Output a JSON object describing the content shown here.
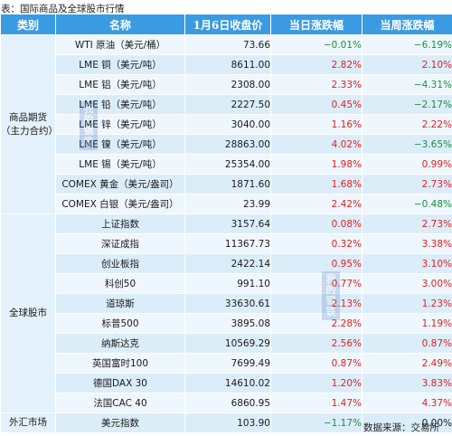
{
  "caption": "表：国际商品及全球股市行情",
  "headers": [
    "类别",
    "名称",
    "1月6日收盘价",
    "当日涨跌幅",
    "当周涨跌幅"
  ],
  "groups": [
    {
      "category": "商品期货（主力合约）",
      "rows": [
        {
          "name": "WTI 原油（美元/桶）",
          "close": "73.66",
          "day": "−0.01%",
          "week": "−6.19%"
        },
        {
          "name": "LME 铜（美元/吨）",
          "close": "8611.00",
          "day": "2.82%",
          "week": "2.10%"
        },
        {
          "name": "LME 铝（美元/吨）",
          "close": "2308.00",
          "day": "2.33%",
          "week": "−4.31%"
        },
        {
          "name": "LME 铅（美元/吨）",
          "close": "2227.50",
          "day": "0.45%",
          "week": "−2.17%"
        },
        {
          "name": "LME 锌（美元/吨）",
          "close": "3040.00",
          "day": "1.16%",
          "week": "2.22%"
        },
        {
          "name": "LME 镍（美元/吨）",
          "close": "28863.00",
          "day": "4.02%",
          "week": "−3.65%"
        },
        {
          "name": "LME 锡（美元/吨）",
          "close": "25354.00",
          "day": "1.98%",
          "week": "0.99%"
        },
        {
          "name": "COMEX 黄金（美元/盎司）",
          "close": "1871.60",
          "day": "1.68%",
          "week": "2.73%"
        },
        {
          "name": "COMEX 白银（美元/盎司）",
          "close": "23.99",
          "day": "2.42%",
          "week": "−0.48%"
        }
      ]
    },
    {
      "category": "全球股市",
      "rows": [
        {
          "name": "上证指数",
          "close": "3157.64",
          "day": "0.08%",
          "week": "2.73%"
        },
        {
          "name": "深证成指",
          "close": "11367.73",
          "day": "0.32%",
          "week": "3.38%"
        },
        {
          "name": "创业板指",
          "close": "2422.14",
          "day": "0.95%",
          "week": "3.10%"
        },
        {
          "name": "科创50",
          "close": "991.10",
          "day": "0.77%",
          "week": "3.00%"
        },
        {
          "name": "道琼斯",
          "close": "33630.61",
          "day": "2.13%",
          "week": "1.23%"
        },
        {
          "name": "标普500",
          "close": "3895.08",
          "day": "2.28%",
          "week": "1.19%"
        },
        {
          "name": "纳斯达克",
          "close": "10569.29",
          "day": "2.56%",
          "week": "0.87%"
        },
        {
          "name": "英国富时100",
          "close": "7699.49",
          "day": "0.87%",
          "week": "2.49%"
        },
        {
          "name": "德国DAX 30",
          "close": "14610.02",
          "day": "1.20%",
          "week": "3.83%"
        },
        {
          "name": "法国CAC 40",
          "close": "6860.95",
          "day": "1.47%",
          "week": "4.37%"
        }
      ]
    },
    {
      "category": "外汇市场",
      "rows": [
        {
          "name": "美元指数",
          "close": "103.90",
          "day": "−1.17%",
          "week": "0.00%"
        }
      ]
    }
  ],
  "source": "数据来源：交易所",
  "watermark": "我的钢铁",
  "colors": {
    "header": "#3a9be2",
    "up": "#e02020",
    "down": "#1a8f3c"
  }
}
